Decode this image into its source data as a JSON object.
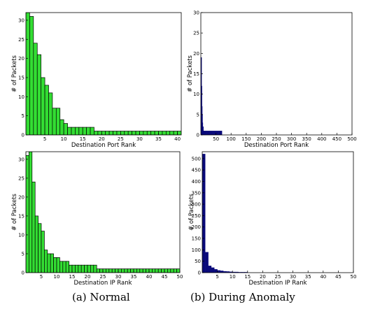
{
  "captions": {
    "left": "(a) Normal",
    "right": "(b) During Anomaly"
  },
  "colors": {
    "normal_bar": "#33dd33",
    "anomaly_bar": "#0a0a7a"
  },
  "chart_data": [
    {
      "type": "bar",
      "xlabel": "Destination Port Rank",
      "ylabel": "# of Packets",
      "xlim": [
        0,
        41
      ],
      "ylim": [
        0,
        32
      ],
      "xticks": [
        5,
        10,
        15,
        20,
        25,
        30,
        35,
        40
      ],
      "yticks": [
        0,
        5,
        10,
        15,
        20,
        25,
        30
      ],
      "x": [
        1,
        2,
        3,
        4,
        5,
        6,
        7,
        8,
        9,
        10,
        11,
        12,
        13,
        14,
        15,
        16,
        17,
        18,
        19,
        20,
        21,
        22,
        23,
        24,
        25,
        26,
        27,
        28,
        29,
        30,
        31,
        32,
        33,
        34,
        35,
        36,
        37,
        38,
        39,
        40,
        41
      ],
      "values": [
        32,
        31,
        24,
        21,
        15,
        13,
        11,
        7,
        7,
        4,
        3,
        2,
        2,
        2,
        2,
        2,
        2,
        2,
        1,
        1,
        1,
        1,
        1,
        1,
        1,
        1,
        1,
        1,
        1,
        1,
        1,
        1,
        1,
        1,
        1,
        1,
        1,
        1,
        1,
        1,
        1
      ],
      "color": "#33dd33"
    },
    {
      "type": "bar",
      "xlabel": "Destination Port Rank",
      "ylabel": "# of Packets",
      "xlim": [
        0,
        500
      ],
      "ylim": [
        0,
        30
      ],
      "xticks": [
        50,
        100,
        150,
        200,
        250,
        300,
        350,
        400,
        450,
        500
      ],
      "yticks": [
        0,
        5,
        10,
        15,
        20,
        25,
        30
      ],
      "x": [
        1,
        2,
        3,
        4,
        5,
        6,
        7,
        8,
        9,
        10,
        20,
        30,
        40,
        50,
        60,
        70
      ],
      "values": [
        19,
        19,
        12,
        7,
        5,
        3,
        2,
        2,
        1,
        1,
        1,
        1,
        1,
        1,
        1,
        1
      ],
      "color": "#0a0a7a"
    },
    {
      "type": "bar",
      "xlabel": "Destination IP Rank",
      "ylabel": "# of Packets",
      "xlim": [
        0,
        50
      ],
      "ylim": [
        0,
        32
      ],
      "xticks": [
        5,
        10,
        15,
        20,
        25,
        30,
        35,
        40,
        45,
        50
      ],
      "yticks": [
        0,
        5,
        10,
        15,
        20,
        25,
        30
      ],
      "x": [
        1,
        2,
        3,
        4,
        5,
        6,
        7,
        8,
        9,
        10,
        11,
        12,
        13,
        14,
        15,
        16,
        17,
        18,
        19,
        20,
        21,
        22,
        23,
        24,
        25,
        26,
        27,
        28,
        29,
        30,
        31,
        32,
        33,
        34,
        35,
        36,
        37,
        38,
        39,
        40,
        41,
        42,
        43,
        44,
        45,
        46,
        47,
        48,
        49,
        50
      ],
      "values": [
        31,
        32,
        24,
        15,
        13,
        11,
        6,
        5,
        5,
        4,
        4,
        3,
        3,
        3,
        2,
        2,
        2,
        2,
        2,
        2,
        2,
        2,
        2,
        1,
        1,
        1,
        1,
        1,
        1,
        1,
        1,
        1,
        1,
        1,
        1,
        1,
        1,
        1,
        1,
        1,
        1,
        1,
        1,
        1,
        1,
        1,
        1,
        1,
        1,
        1
      ],
      "color": "#33dd33"
    },
    {
      "type": "bar",
      "xlabel": "Destination IP Rank",
      "ylabel": "# of Packets",
      "xlim": [
        0,
        50
      ],
      "ylim": [
        0,
        530
      ],
      "xticks": [
        5,
        10,
        15,
        20,
        25,
        30,
        35,
        40,
        45,
        50
      ],
      "yticks": [
        0,
        50,
        100,
        150,
        200,
        250,
        300,
        350,
        400,
        450,
        500
      ],
      "x": [
        1,
        2,
        3,
        4,
        5,
        6,
        7,
        8,
        9,
        10,
        11,
        12,
        13,
        14,
        15
      ],
      "values": [
        520,
        90,
        30,
        22,
        15,
        10,
        8,
        6,
        5,
        4,
        3,
        3,
        2,
        2,
        2
      ],
      "color": "#0a0a7a"
    }
  ]
}
